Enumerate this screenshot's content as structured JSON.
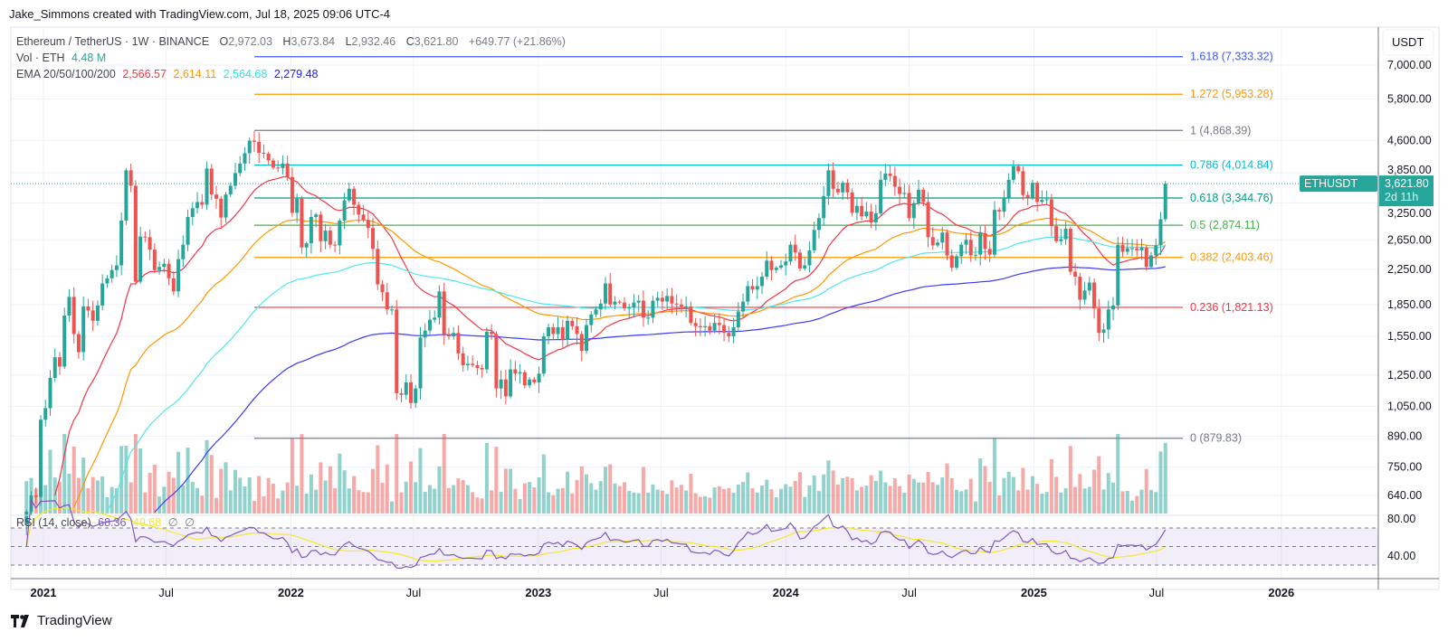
{
  "header": {
    "credit": "Jake_Simmons created with TradingView.com, Jul 18, 2025 09:06 UTC-4",
    "symbol": "Ethereum / TetherUS · 1W · BINANCE",
    "open_label": "O",
    "open": "2,972.03",
    "high_label": "H",
    "high": "3,673.84",
    "low_label": "L",
    "low": "2,932.46",
    "close_label": "C",
    "close": "3,621.80",
    "change": "+649.77 (+21.86%)",
    "vol_label": "Vol · ETH",
    "vol_value": "4.48 M",
    "ema_label": "EMA 20/50/100/200",
    "ema_values": [
      "2,566.57",
      "2,614.11",
      "2,564.68",
      "2,279.48"
    ],
    "rsi_label": "RSI (14, close)",
    "rsi_value": "68.36",
    "rsi_ma_value": "49.68",
    "rsi_na1": "∅",
    "rsi_na2": "∅"
  },
  "price_axis": {
    "currency": "USDT",
    "labels": [
      "7,000.00",
      "5,800.00",
      "4,600.00",
      "3,850.00",
      "3,250.00",
      "2,650.00",
      "2,250.00",
      "1,850.00",
      "1,550.00",
      "1,250.00",
      "1,050.00",
      "890.00",
      "750.00",
      "640.00"
    ],
    "rsi_labels": [
      "80.00",
      "40.00"
    ]
  },
  "last_price": {
    "symbol": "ETHUSDT",
    "price": "3,621.80",
    "countdown": "2d 11h",
    "value": 3621.8
  },
  "time_axis": [
    {
      "label": "2021",
      "date": "2021-01-01",
      "bold": true
    },
    {
      "label": "Jul",
      "date": "2021-07-01"
    },
    {
      "label": "2022",
      "date": "2022-01-01",
      "bold": true
    },
    {
      "label": "Jul",
      "date": "2022-07-01"
    },
    {
      "label": "2023",
      "date": "2023-01-01",
      "bold": true
    },
    {
      "label": "Jul",
      "date": "2023-07-01"
    },
    {
      "label": "2024",
      "date": "2024-01-01",
      "bold": true
    },
    {
      "label": "Jul",
      "date": "2024-07-01"
    },
    {
      "label": "2025",
      "date": "2025-01-01",
      "bold": true
    },
    {
      "label": "Jul",
      "date": "2025-07-01"
    },
    {
      "label": "2026",
      "date": "2026-01-01",
      "bold": true
    }
  ],
  "brand": "TradingView",
  "colors": {
    "up": "#26a69a",
    "down": "#ef5350",
    "ema20": "#f23645",
    "ema50": "#ff9800",
    "ema100": "#4de8f0",
    "ema200": "#3b3bf2",
    "rsi": "#7e57c2",
    "rsi_ma": "#f5e72c"
  },
  "chart_data": {
    "type": "candlestick",
    "interval": "1W",
    "scale": "log",
    "ylim": [
      600,
      7600
    ],
    "grid": true,
    "last_candle": {
      "open": 2972.03,
      "high": 3673.84,
      "low": 2932.46,
      "close": 3621.8
    },
    "weekly_closes_by_month": {
      "2020-12": [
        585,
        640,
        635,
        975
      ],
      "2021-01": [
        1040,
        1230,
        1380,
        1310
      ],
      "2021-02": [
        1740,
        1930,
        1570,
        1420
      ],
      "2021-03": [
        1830,
        1790,
        1690,
        1840,
        2080
      ],
      "2021-04": [
        2140,
        2240,
        2300,
        2950
      ],
      "2021-05": [
        3900,
        3580,
        2100,
        2700,
        2690
      ],
      "2021-06": [
        2510,
        2240,
        2280,
        2320
      ],
      "2021-07": [
        2140,
        1990,
        2380,
        2580
      ],
      "2021-08": [
        3010,
        3160,
        3270,
        3220,
        3940
      ],
      "2021-09": [
        3410,
        3330,
        3000,
        3410
      ],
      "2021-10": [
        3580,
        3840,
        4050,
        4290
      ],
      "2021-11": [
        4600,
        4570,
        4300,
        4280,
        4120
      ],
      "2021-12": [
        3960,
        3950,
        4050,
        3760
      ],
      "2022-01": [
        3080,
        3330,
        2540,
        2600,
        3010
      ],
      "2022-02": [
        3050,
        2630,
        2790,
        2580
      ],
      "2022-03": [
        2570,
        2950,
        3300,
        3520
      ],
      "2022-04": [
        3220,
        3050,
        2960,
        2830
      ],
      "2022-05": [
        2520,
        2070,
        1980,
        1800,
        1800
      ],
      "2022-06": [
        1130,
        1120,
        1200,
        1070
      ],
      "2022-07": [
        1160,
        1540,
        1600,
        1700
      ],
      "2022-08": [
        1720,
        1990,
        1570,
        1550,
        1580
      ],
      "2022-09": [
        1410,
        1320,
        1330,
        1320
      ],
      "2022-10": [
        1300,
        1290,
        1590,
        1570,
        1160
      ],
      "2022-11": [
        1220,
        1110,
        1290,
        1260
      ],
      "2022-12": [
        1270,
        1180,
        1220,
        1200
      ],
      "2023-01": [
        1260,
        1550,
        1630,
        1570,
        1630
      ],
      "2023-02": [
        1520,
        1690,
        1640,
        1570
      ],
      "2023-03": [
        1430,
        1650,
        1750,
        1800
      ],
      "2023-04": [
        1860,
        2080,
        1850,
        1880
      ],
      "2023-05": [
        1870,
        1810,
        1820,
        1870,
        1890
      ],
      "2023-06": [
        1720,
        1720,
        1890,
        1920
      ],
      "2023-07": [
        1880,
        1940,
        1860,
        1850,
        1830
      ],
      "2023-08": [
        1830,
        1670,
        1640,
        1630
      ],
      "2023-09": [
        1640,
        1600,
        1670,
        1650
      ],
      "2023-10": [
        1580,
        1550,
        1630,
        1780,
        1880
      ],
      "2023-11": [
        2050,
        2010,
        2050,
        2160
      ],
      "2023-12": [
        2360,
        2240,
        2270,
        2300
      ],
      "2024-01": [
        2350,
        2580,
        2470,
        2260,
        2300
      ],
      "2024-02": [
        2500,
        2800,
        2990,
        3380
      ],
      "2024-03": [
        3900,
        3520,
        3450,
        3640
      ],
      "2024-04": [
        3450,
        3080,
        3200,
        3020,
        3100
      ],
      "2024-05": [
        2920,
        3070,
        3700,
        3830
      ],
      "2024-06": [
        3780,
        3560,
        3420,
        3440
      ],
      "2024-07": [
        2990,
        3250,
        3500,
        3270,
        2690
      ],
      "2024-08": [
        2570,
        2610,
        2760,
        2430
      ],
      "2024-09": [
        2270,
        2420,
        2580,
        2650,
        2430
      ],
      "2024-10": [
        2440,
        2750,
        2520,
        2440
      ],
      "2024-11": [
        3130,
        3100,
        3350,
        3700
      ],
      "2024-12": [
        3990,
        3880,
        3400,
        3350,
        3640
      ],
      "2025-01": [
        3270,
        3310,
        3320,
        2860
      ],
      "2025-02": [
        2630,
        2660,
        2820,
        2220
      ],
      "2025-03": [
        2160,
        1900,
        2000,
        2090,
        1810
      ],
      "2025-04": [
        1580,
        1610,
        1800,
        1840
      ],
      "2025-05": [
        2580,
        2480,
        2530,
        2530
      ],
      "2025-06": [
        2500,
        2540,
        2280,
        2430,
        2570
      ],
      "2025-07": [
        2972.03,
        3621.8
      ]
    },
    "indicators": {
      "ema_periods": [
        20,
        50,
        100,
        200
      ],
      "rsi": {
        "period": 14,
        "source": "close",
        "ma_period": 14,
        "levels": [
          70,
          50,
          30
        ],
        "range": [
          0,
          100
        ]
      }
    },
    "fibonacci": {
      "from_date": "2021-11-08",
      "levels": [
        {
          "label": "1.618 (7,333.32)",
          "ratio": 1.618,
          "price": 7333.32,
          "color": "#3d5afe"
        },
        {
          "label": "1.272 (5,953.28)",
          "ratio": 1.272,
          "price": 5953.28,
          "color": "#ff9800"
        },
        {
          "label": "1 (4,868.39)",
          "ratio": 1,
          "price": 4868.39,
          "color": "#787b86"
        },
        {
          "label": "0.786 (4,014.84)",
          "ratio": 0.786,
          "price": 4014.84,
          "color": "#00bcd4"
        },
        {
          "label": "0.618 (3,344.76)",
          "ratio": 0.618,
          "price": 3344.76,
          "color": "#089981"
        },
        {
          "label": "0.5 (2,874.11)",
          "ratio": 0.5,
          "price": 2874.11,
          "color": "#4caf50"
        },
        {
          "label": "0.382 (2,403.46)",
          "ratio": 0.382,
          "price": 2403.46,
          "color": "#ff9800"
        },
        {
          "label": "0.236 (1,821.13)",
          "ratio": 0.236,
          "price": 1821.13,
          "color": "#f23645"
        },
        {
          "label": "0 (879.83)",
          "ratio": 0,
          "price": 879.83,
          "color": "#787b86"
        }
      ]
    }
  }
}
